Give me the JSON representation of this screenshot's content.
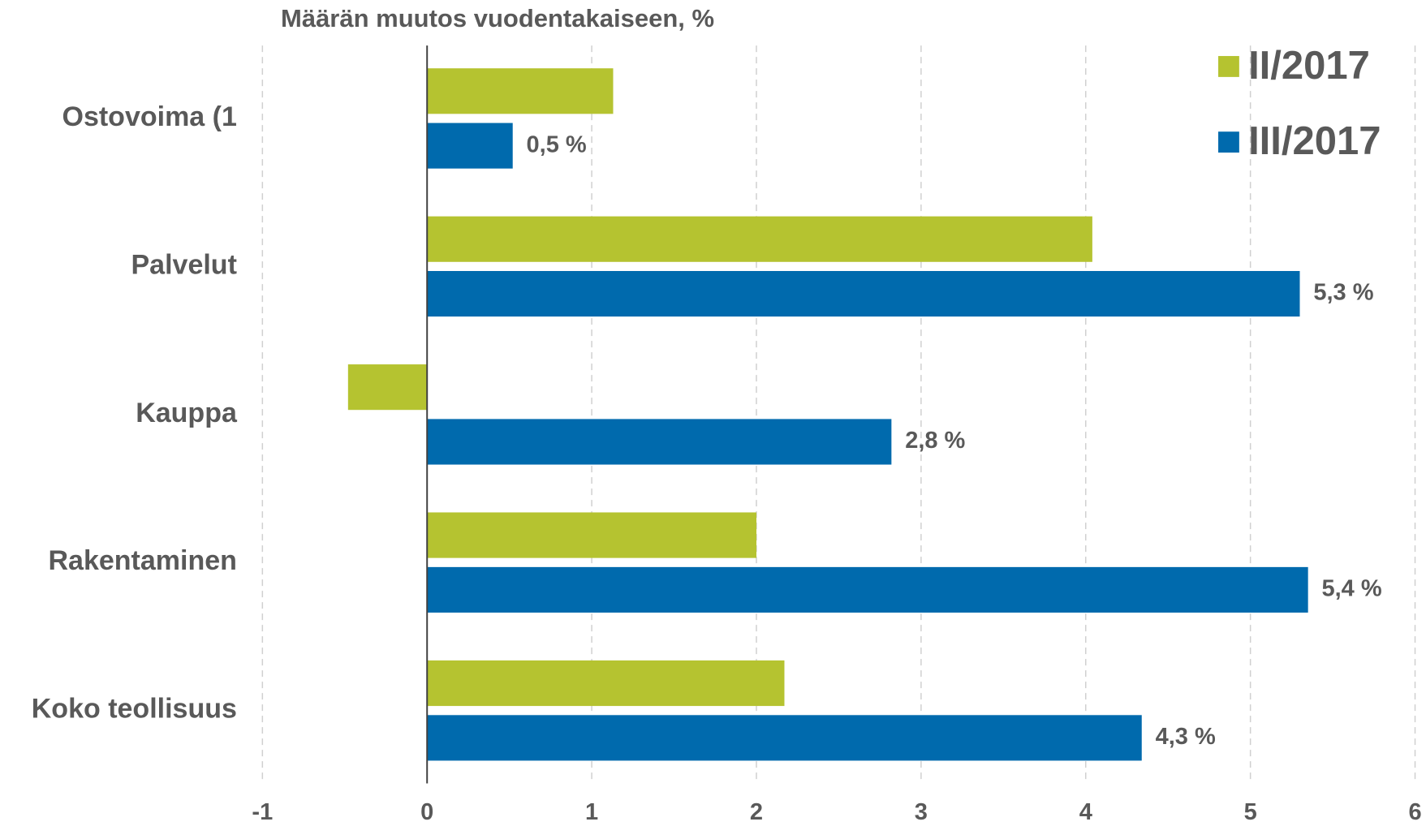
{
  "chart_data": {
    "type": "bar",
    "orientation": "horizontal",
    "title": "Määrän muutos vuodentakaiseen, %",
    "categories": [
      "Ostovoima (1",
      "Palvelut",
      "Kauppa",
      "Rakentaminen",
      "Koko teollisuus"
    ],
    "series": [
      {
        "name": "II/2017",
        "color": "#b5c330",
        "values": [
          1.13,
          4.04,
          -0.48,
          2.0,
          2.17
        ]
      },
      {
        "name": "III/2017",
        "color": "#006aad",
        "values": [
          0.52,
          5.3,
          2.82,
          5.35,
          4.34
        ],
        "value_labels": [
          "0,5 %",
          "5,3 %",
          "2,8 %",
          "5,4 %",
          "4,3 %"
        ]
      }
    ],
    "xlim": [
      -1,
      6
    ],
    "xticks": [
      -1,
      0,
      1,
      2,
      3,
      4,
      5,
      6
    ],
    "grid": true,
    "legend": "top-right"
  }
}
